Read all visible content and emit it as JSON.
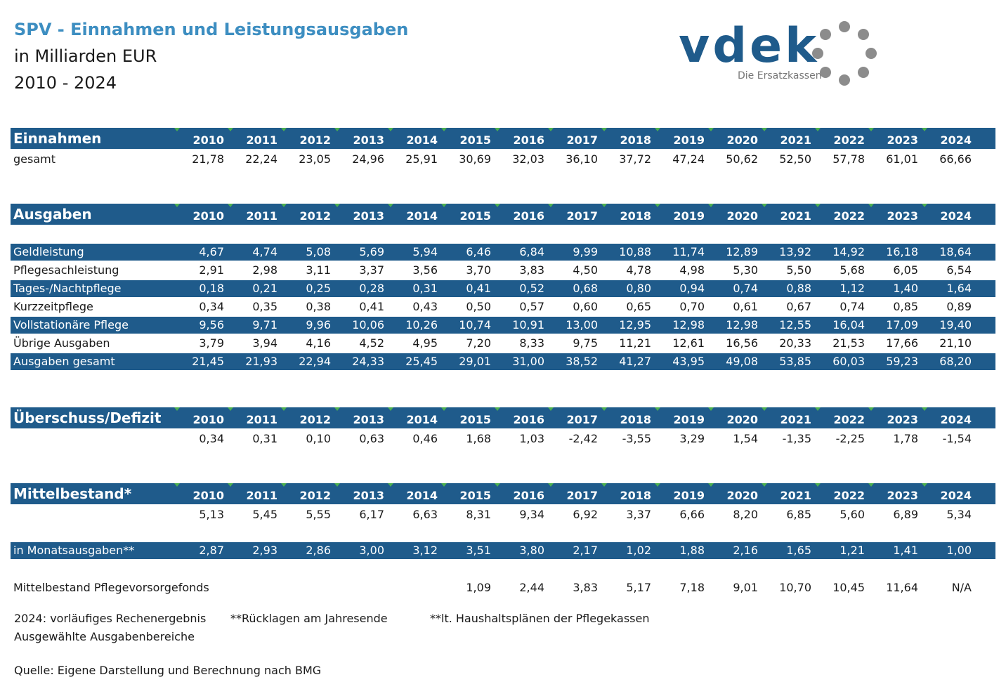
{
  "header": {
    "title": "SPV - Einnahmen und Leistungsausgaben",
    "unit": "in Milliarden EUR",
    "period": "2010 - 2024"
  },
  "logo": {
    "word": "vdek",
    "sub": "Die Ersatzkassen",
    "ring_color": "#8c8c8c",
    "brand_color": "#1f5b8b"
  },
  "years": [
    "2010",
    "2011",
    "2012",
    "2013",
    "2014",
    "2015",
    "2016",
    "2017",
    "2018",
    "2019",
    "2020",
    "2021",
    "2022",
    "2023",
    "2024"
  ],
  "einnahmen": {
    "heading": "Einnahmen",
    "rows": [
      {
        "label": "gesamt",
        "values": [
          "21,78",
          "22,24",
          "23,05",
          "24,96",
          "25,91",
          "30,69",
          "32,03",
          "36,10",
          "37,72",
          "47,24",
          "50,62",
          "52,50",
          "57,78",
          "61,01",
          "66,66"
        ]
      }
    ]
  },
  "ausgaben": {
    "heading": "Ausgaben",
    "rows": [
      {
        "label": "Geldleistung",
        "values": [
          "4,67",
          "4,74",
          "5,08",
          "5,69",
          "5,94",
          "6,46",
          "6,84",
          "9,99",
          "10,88",
          "11,74",
          "12,89",
          "13,92",
          "14,92",
          "16,18",
          "18,64"
        ]
      },
      {
        "label": "Pflegesachleistung",
        "values": [
          "2,91",
          "2,98",
          "3,11",
          "3,37",
          "3,56",
          "3,70",
          "3,83",
          "4,50",
          "4,78",
          "4,98",
          "5,30",
          "5,50",
          "5,68",
          "6,05",
          "6,54"
        ]
      },
      {
        "label": "Tages-/Nachtpflege",
        "values": [
          "0,18",
          "0,21",
          "0,25",
          "0,28",
          "0,31",
          "0,41",
          "0,52",
          "0,68",
          "0,80",
          "0,94",
          "0,74",
          "0,88",
          "1,12",
          "1,40",
          "1,64"
        ]
      },
      {
        "label": "Kurzzeitpflege",
        "values": [
          "0,34",
          "0,35",
          "0,38",
          "0,41",
          "0,43",
          "0,50",
          "0,57",
          "0,60",
          "0,65",
          "0,70",
          "0,61",
          "0,67",
          "0,74",
          "0,85",
          "0,89"
        ]
      },
      {
        "label": "Vollstationäre Pflege",
        "values": [
          "9,56",
          "9,71",
          "9,96",
          "10,06",
          "10,26",
          "10,74",
          "10,91",
          "13,00",
          "12,95",
          "12,98",
          "12,98",
          "12,55",
          "16,04",
          "17,09",
          "19,40"
        ]
      },
      {
        "label": "Übrige Ausgaben",
        "values": [
          "3,79",
          "3,94",
          "4,16",
          "4,52",
          "4,95",
          "7,20",
          "8,33",
          "9,75",
          "11,21",
          "12,61",
          "16,56",
          "20,33",
          "21,53",
          "17,66",
          "21,10"
        ]
      },
      {
        "label": "Ausgaben gesamt",
        "values": [
          "21,45",
          "21,93",
          "22,94",
          "24,33",
          "25,45",
          "29,01",
          "31,00",
          "38,52",
          "41,27",
          "43,95",
          "49,08",
          "53,85",
          "60,03",
          "59,23",
          "68,20"
        ]
      }
    ]
  },
  "ueberschuss": {
    "heading": "Überschuss/Defizit",
    "rows": [
      {
        "label": "",
        "values": [
          "0,34",
          "0,31",
          "0,10",
          "0,63",
          "0,46",
          "1,68",
          "1,03",
          "-2,42",
          "-3,55",
          "3,29",
          "1,54",
          "-1,35",
          "-2,25",
          "1,78",
          "-1,54"
        ]
      }
    ]
  },
  "mittelbestand": {
    "heading": "Mittelbestand*",
    "rows": [
      {
        "label": "",
        "values": [
          "5,13",
          "5,45",
          "5,55",
          "6,17",
          "6,63",
          "8,31",
          "9,34",
          "6,92",
          "3,37",
          "6,66",
          "8,20",
          "6,85",
          "5,60",
          "6,89",
          "5,34"
        ]
      }
    ]
  },
  "monatsausgaben": {
    "label": "in Monatsausgaben**",
    "values": [
      "2,87",
      "2,93",
      "2,86",
      "3,00",
      "3,12",
      "3,51",
      "3,80",
      "2,17",
      "1,02",
      "1,88",
      "2,16",
      "1,65",
      "1,21",
      "1,41",
      "1,00"
    ]
  },
  "vorsorgefonds": {
    "label": "Mittelbestand Pflegevorsorgefonds",
    "values": [
      "",
      "",
      "",
      "",
      "",
      "1,09",
      "2,44",
      "3,83",
      "5,17",
      "7,18",
      "9,01",
      "10,70",
      "10,45",
      "11,64",
      "N/A"
    ]
  },
  "notes": {
    "n1": "2024: vorläufiges Rechenergebnis",
    "n2": "**Rücklagen am Jahresende",
    "n3": "**lt. Haushaltsplänen der Pflegekassen",
    "n4": "Ausgewählte Ausgabenbereiche",
    "source": "Quelle: Eigene Darstellung und Berechnung nach BMG"
  }
}
